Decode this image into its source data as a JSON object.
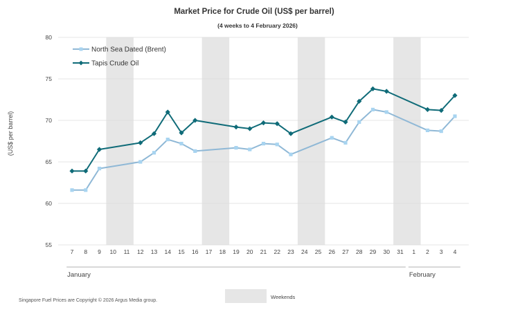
{
  "chart_data": {
    "type": "line",
    "title": "Market Price for  Crude Oil  (US$ per barrel)",
    "subtitle": "(4 weeks to 4 February 2026)",
    "ylabel": "(US$ per barrel)",
    "xlabel": "",
    "ylim": [
      55,
      80
    ],
    "yticks": [
      55,
      60,
      65,
      70,
      75,
      80
    ],
    "grid": true,
    "legend_position": "top-left",
    "categories": [
      "7",
      "8",
      "9",
      "10",
      "11",
      "12",
      "13",
      "14",
      "15",
      "16",
      "17",
      "18",
      "19",
      "20",
      "21",
      "22",
      "23",
      "24",
      "25",
      "26",
      "27",
      "28",
      "29",
      "30",
      "31",
      "1",
      "2",
      "3",
      "4"
    ],
    "months": [
      {
        "label": "January",
        "start_index": 0,
        "end_index": 24
      },
      {
        "label": "February",
        "start_index": 25,
        "end_index": 28
      }
    ],
    "weekends": [
      {
        "label": "10-11",
        "start_index": 3,
        "end_index": 4
      },
      {
        "label": "17-18",
        "start_index": 10,
        "end_index": 11
      },
      {
        "label": "24-25",
        "start_index": 17,
        "end_index": 18
      },
      {
        "label": "31-1",
        "start_index": 24,
        "end_index": 25
      }
    ],
    "series": [
      {
        "name": "North Sea Dated (Brent)",
        "color": "#8fb8d6",
        "marker_color": "#a8d4f0",
        "marker": "square",
        "points": [
          [
            0,
            61.6
          ],
          [
            1,
            61.6
          ],
          [
            2,
            64.2
          ],
          [
            5,
            65.0
          ],
          [
            6,
            66.1
          ],
          [
            7,
            67.7
          ],
          [
            8,
            67.2
          ],
          [
            9,
            66.3
          ],
          [
            12,
            66.7
          ],
          [
            13,
            66.5
          ],
          [
            14,
            67.2
          ],
          [
            15,
            67.1
          ],
          [
            16,
            65.9
          ],
          [
            19,
            67.9
          ],
          [
            20,
            67.3
          ],
          [
            21,
            69.8
          ],
          [
            22,
            71.3
          ],
          [
            23,
            71.0
          ],
          [
            26,
            68.8
          ],
          [
            27,
            68.7
          ],
          [
            28,
            70.5
          ]
        ]
      },
      {
        "name": "Tapis Crude Oil",
        "color": "#0f6b78",
        "marker_color": "#0f6b78",
        "marker": "diamond",
        "points": [
          [
            0,
            63.9
          ],
          [
            1,
            63.9
          ],
          [
            2,
            66.5
          ],
          [
            5,
            67.3
          ],
          [
            6,
            68.4
          ],
          [
            7,
            71.0
          ],
          [
            8,
            68.5
          ],
          [
            9,
            70.0
          ],
          [
            12,
            69.2
          ],
          [
            13,
            69.0
          ],
          [
            14,
            69.7
          ],
          [
            15,
            69.6
          ],
          [
            16,
            68.4
          ],
          [
            19,
            70.4
          ],
          [
            20,
            69.8
          ],
          [
            21,
            72.3
          ],
          [
            22,
            73.8
          ],
          [
            23,
            73.5
          ],
          [
            26,
            71.3
          ],
          [
            27,
            71.2
          ],
          [
            28,
            73.0
          ]
        ]
      }
    ]
  },
  "footer": {
    "copyright": "Singapore  Fuel  Prices  are  Copyright  ©  2026  Argus  Media  group.",
    "weekend_legend_label": "Weekends"
  },
  "colors": {
    "weekend_fill": "#e6e6e6",
    "grid": "#dcdcdc",
    "axis": "#999999"
  }
}
